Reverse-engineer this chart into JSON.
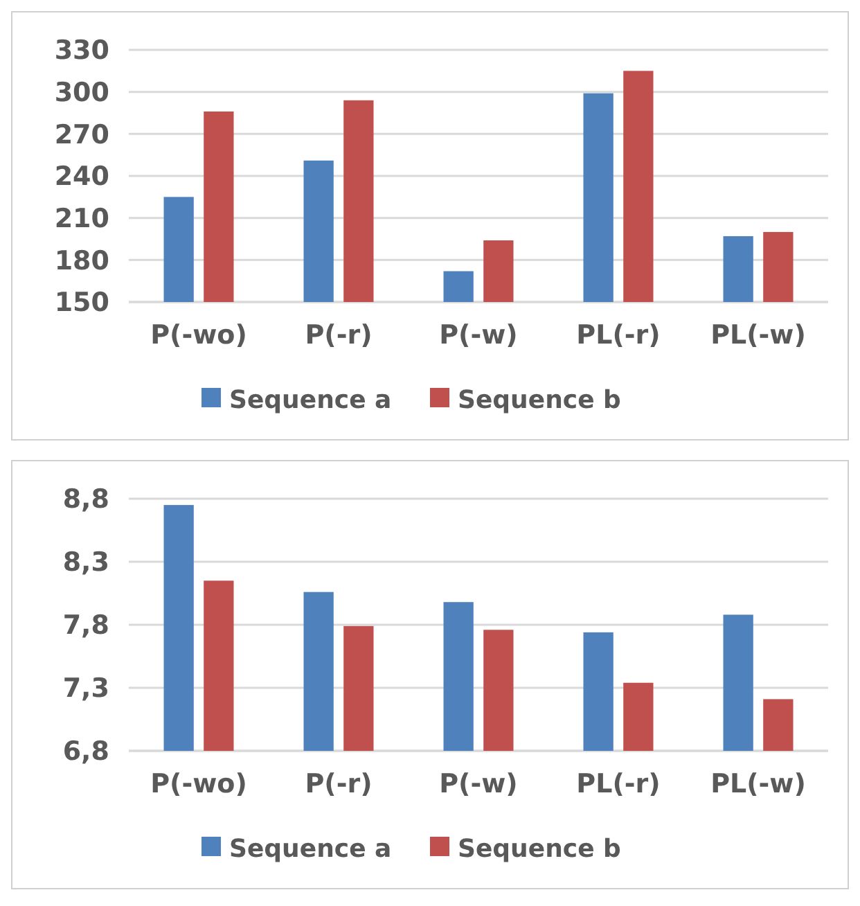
{
  "chart_data": [
    {
      "type": "bar",
      "categories": [
        "P(-wo)",
        "P(-r)",
        "P(-w)",
        "PL(-r)",
        "PL(-w)"
      ],
      "series": [
        {
          "name": "Sequence a",
          "color": "#4f81bd",
          "values": [
            225,
            251,
            172,
            299,
            197
          ]
        },
        {
          "name": "Sequence b",
          "color": "#c0504d",
          "values": [
            286,
            294,
            194,
            315,
            200
          ]
        }
      ],
      "ylim": [
        150,
        330
      ],
      "yticks": [
        150,
        180,
        210,
        240,
        270,
        300,
        330
      ],
      "grid": "y",
      "legend": "bottom"
    },
    {
      "type": "bar",
      "categories": [
        "P(-wo)",
        "P(-r)",
        "P(-w)",
        "PL(-r)",
        "PL(-w)"
      ],
      "series": [
        {
          "name": "Sequence a",
          "color": "#4f81bd",
          "values": [
            8.75,
            8.06,
            7.98,
            7.74,
            7.88
          ]
        },
        {
          "name": "Sequence b",
          "color": "#c0504d",
          "values": [
            8.15,
            7.79,
            7.76,
            7.34,
            7.21
          ]
        }
      ],
      "ylim": [
        6.8,
        8.8
      ],
      "yticks": [
        {
          "value": 6.8,
          "label": "6,8"
        },
        {
          "value": 7.3,
          "label": "7,3"
        },
        {
          "value": 7.8,
          "label": "7,8"
        },
        {
          "value": 8.3,
          "label": "8,3"
        },
        {
          "value": 8.8,
          "label": "8,8"
        }
      ],
      "grid": "y",
      "legend": "bottom"
    }
  ]
}
